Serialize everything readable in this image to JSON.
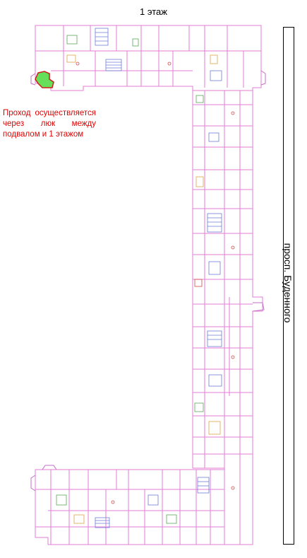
{
  "title": "1 этаж",
  "street_label": "просп. Буденного",
  "note": "Проход осуществляется через люк между подвалом и 1 этажом",
  "colors": {
    "wall": "#e37ed8",
    "wall_alt": "#c56cc8",
    "detail_blue": "#6d7ed8",
    "detail_green": "#58a858",
    "detail_orange": "#e1a24a",
    "detail_red": "#d24a4a",
    "highlight_fill": "#66e05a",
    "highlight_stroke": "#d01a1a",
    "note_text": "#e00000"
  },
  "icons": [
    "hatch-highlight",
    "stairwell-icon",
    "bay-window-icon"
  ]
}
